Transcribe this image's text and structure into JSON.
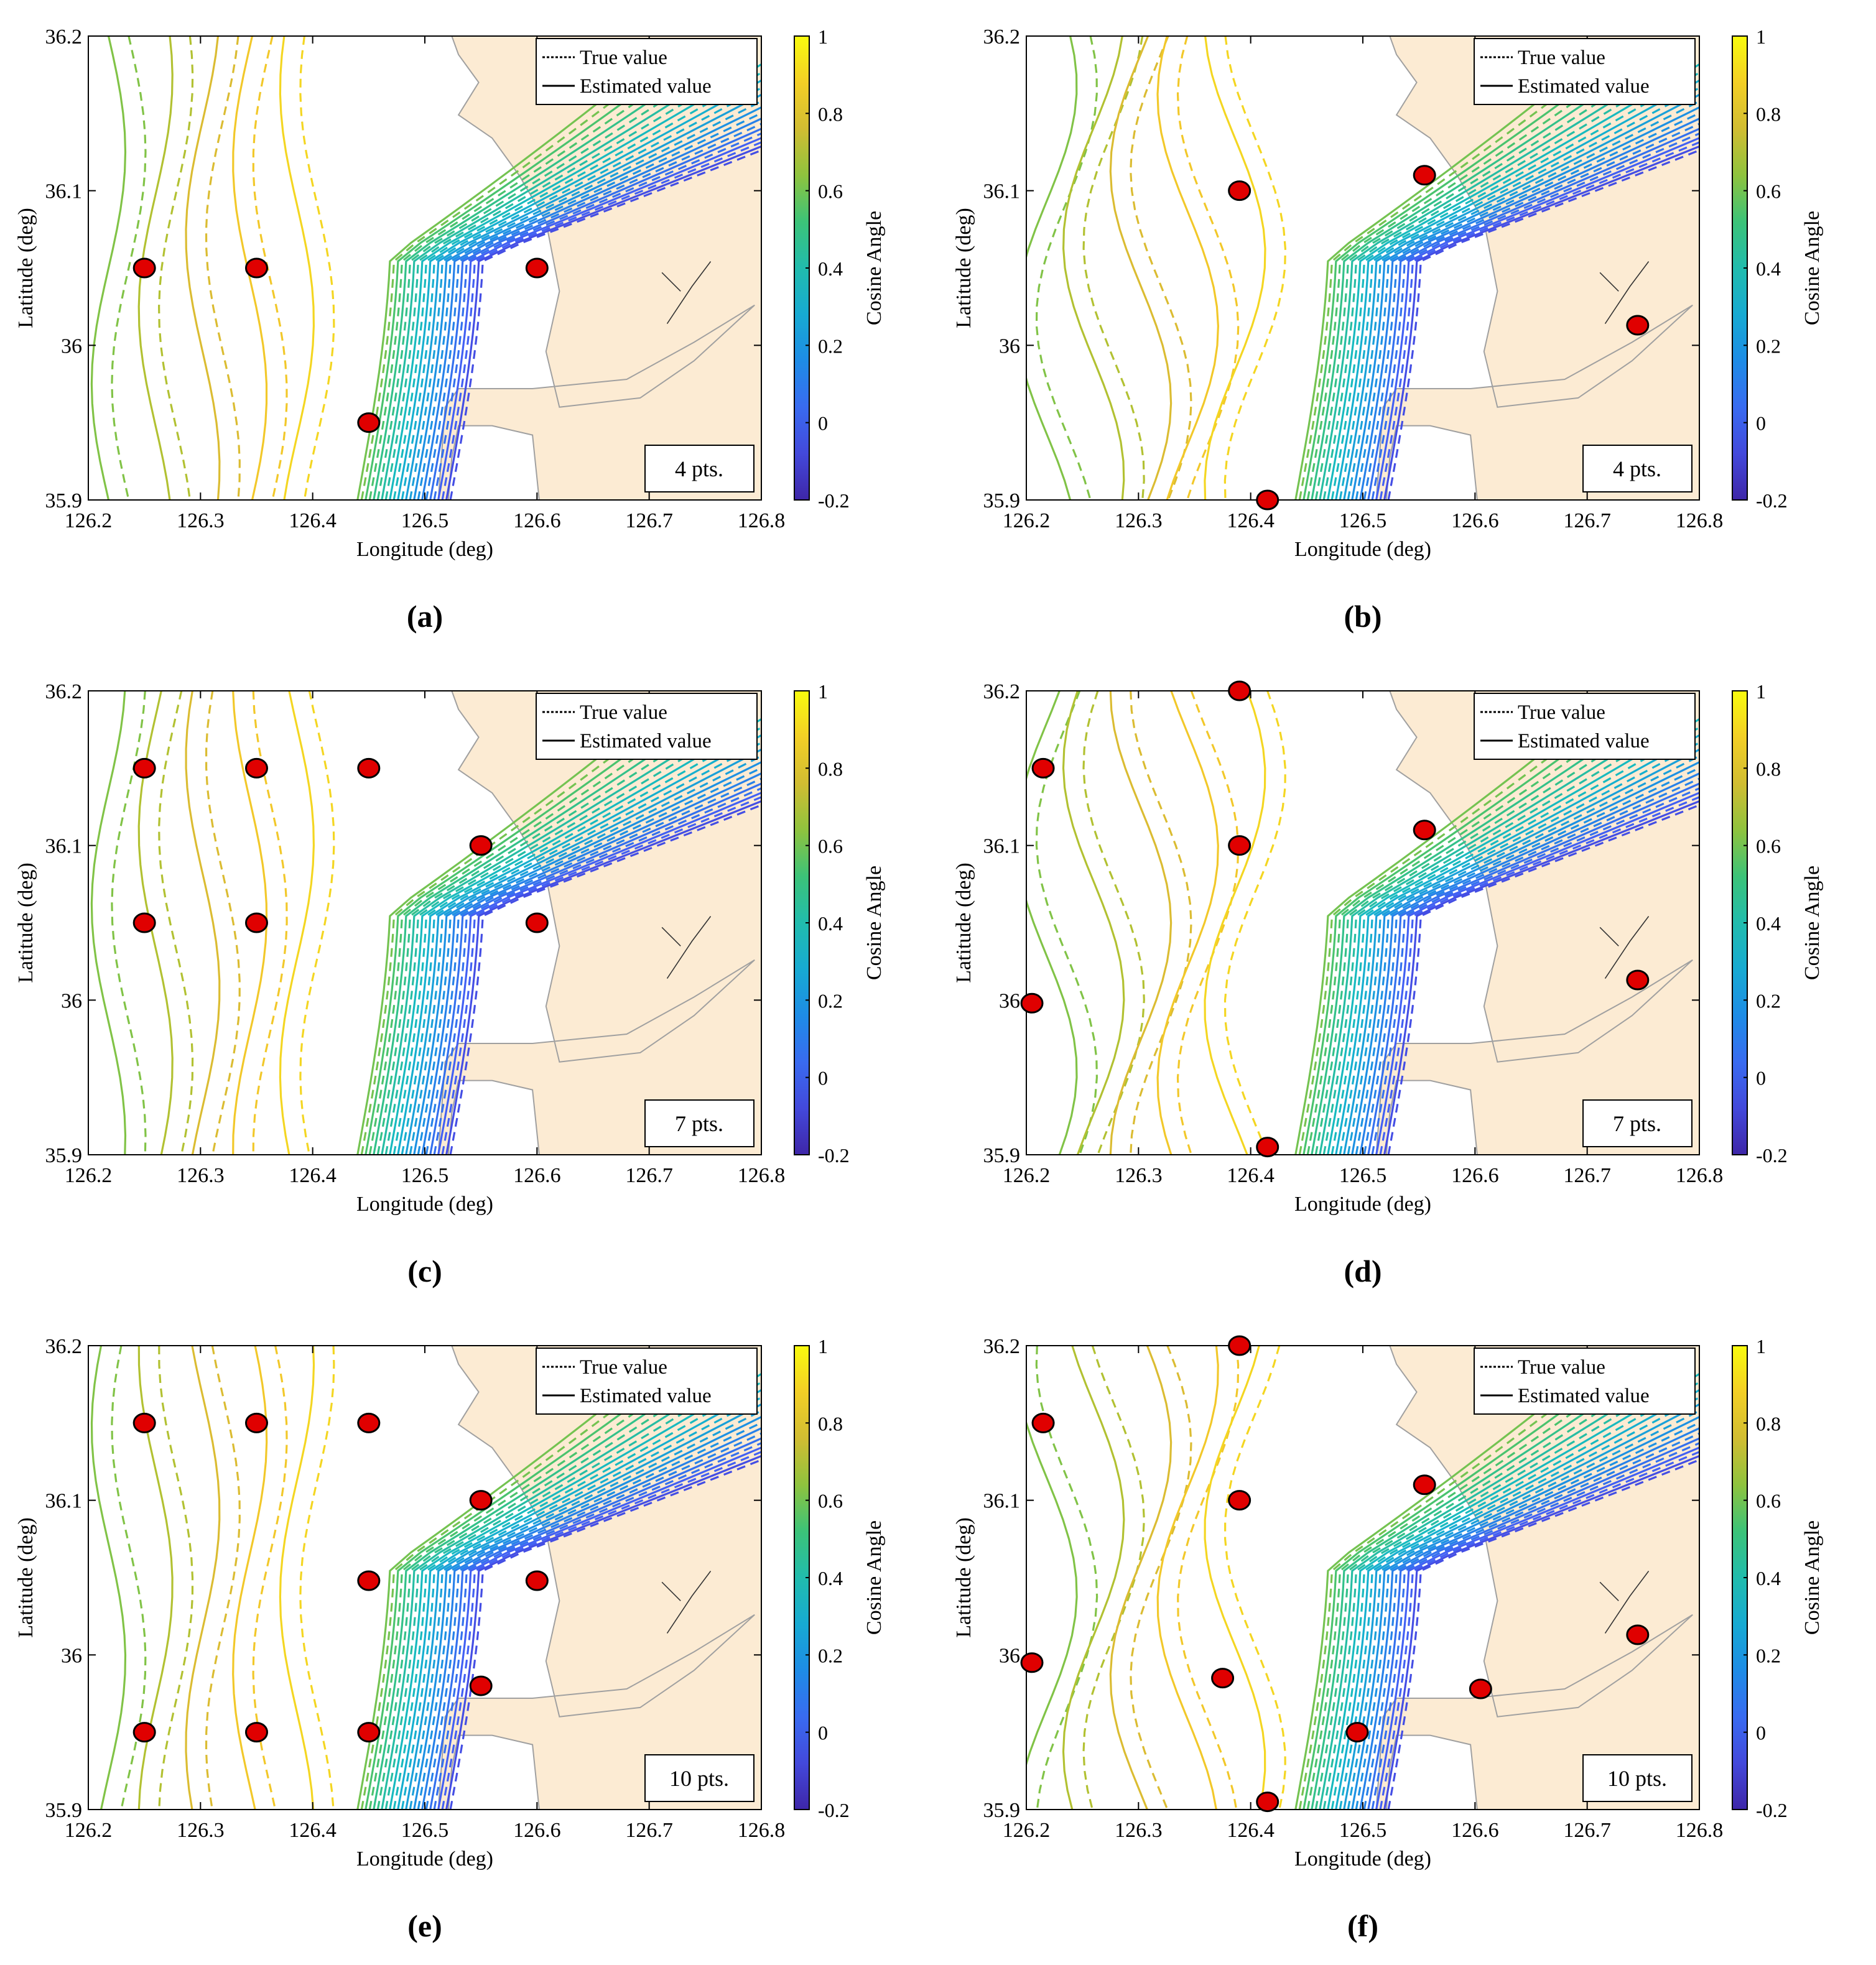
{
  "figure": {
    "panels": [
      {
        "id": "a",
        "caption": "(a)"
      },
      {
        "id": "b",
        "caption": "(b)"
      },
      {
        "id": "c",
        "caption": "(c)"
      },
      {
        "id": "d",
        "caption": "(d)"
      },
      {
        "id": "e",
        "caption": "(e)"
      },
      {
        "id": "f",
        "caption": "(f)"
      }
    ],
    "colors": {
      "land": "#fcebd3",
      "coast": "#a0a0a0",
      "marker_fill": "#e00000",
      "marker_edge": "#000000"
    }
  },
  "chart_data": [
    {
      "panel": "a",
      "type": "contour",
      "xlabel": "Longitude (deg)",
      "ylabel": "Latitude (deg)",
      "xlim": [
        126.2,
        126.8
      ],
      "ylim": [
        35.9,
        36.2
      ],
      "xticks": [
        "126.2",
        "126.3",
        "126.4",
        "126.5",
        "126.6",
        "126.7",
        "126.8"
      ],
      "yticks": [
        "35.9",
        "36",
        "36.1",
        "36.2"
      ],
      "colorbar": {
        "label": "Cosine Angle",
        "min": -0.2,
        "max": 1,
        "ticks": [
          "-0.2",
          "0",
          "0.2",
          "0.4",
          "0.6",
          "0.8",
          "1"
        ]
      },
      "legend": {
        "position": "top-right",
        "entries": [
          "True value",
          "Estimated value"
        ]
      },
      "annotation": "4 pts.",
      "points": [
        [
          126.25,
          36.05
        ],
        [
          126.35,
          36.05
        ],
        [
          126.6,
          36.05
        ],
        [
          126.45,
          35.95
        ]
      ]
    },
    {
      "panel": "b",
      "type": "contour",
      "xlabel": "Longitude (deg)",
      "ylabel": "Latitude (deg)",
      "xlim": [
        126.2,
        126.8
      ],
      "ylim": [
        35.9,
        36.2
      ],
      "xticks": [
        "126.2",
        "126.3",
        "126.4",
        "126.5",
        "126.6",
        "126.7",
        "126.8"
      ],
      "yticks": [
        "35.9",
        "36",
        "36.1",
        "36.2"
      ],
      "colorbar": {
        "label": "Cosine Angle",
        "min": -0.2,
        "max": 1,
        "ticks": [
          "-0.2",
          "0",
          "0.2",
          "0.4",
          "0.6",
          "0.8",
          "1"
        ]
      },
      "legend": {
        "position": "top-right",
        "entries": [
          "True value",
          "Estimated value"
        ]
      },
      "annotation": "4 pts.",
      "points": [
        [
          126.39,
          36.1
        ],
        [
          126.555,
          36.11
        ],
        [
          126.745,
          36.013
        ],
        [
          126.415,
          35.9
        ]
      ]
    },
    {
      "panel": "c",
      "type": "contour",
      "xlabel": "Longitude (deg)",
      "ylabel": "Latitude (deg)",
      "xlim": [
        126.2,
        126.8
      ],
      "ylim": [
        35.9,
        36.2
      ],
      "xticks": [
        "126.2",
        "126.3",
        "126.4",
        "126.5",
        "126.6",
        "126.7",
        "126.8"
      ],
      "yticks": [
        "35.9",
        "36",
        "36.1",
        "36.2"
      ],
      "colorbar": {
        "label": "Cosine Angle",
        "min": -0.2,
        "max": 1,
        "ticks": [
          "-0.2",
          "0",
          "0.2",
          "0.4",
          "0.6",
          "0.8",
          "1"
        ]
      },
      "legend": {
        "position": "top-right",
        "entries": [
          "True value",
          "Estimated value"
        ]
      },
      "annotation": "7 pts.",
      "points": [
        [
          126.25,
          36.15
        ],
        [
          126.35,
          36.15
        ],
        [
          126.45,
          36.15
        ],
        [
          126.55,
          36.1
        ],
        [
          126.25,
          36.05
        ],
        [
          126.35,
          36.05
        ],
        [
          126.6,
          36.05
        ]
      ]
    },
    {
      "panel": "d",
      "type": "contour",
      "xlabel": "Longitude (deg)",
      "ylabel": "Latitude (deg)",
      "xlim": [
        126.2,
        126.8
      ],
      "ylim": [
        35.9,
        36.2
      ],
      "xticks": [
        "126.2",
        "126.3",
        "126.4",
        "126.5",
        "126.6",
        "126.7",
        "126.8"
      ],
      "yticks": [
        "35.9",
        "36",
        "36.1",
        "36.2"
      ],
      "colorbar": {
        "label": "Cosine Angle",
        "min": -0.2,
        "max": 1,
        "ticks": [
          "-0.2",
          "0",
          "0.2",
          "0.4",
          "0.6",
          "0.8",
          "1"
        ]
      },
      "legend": {
        "position": "top-right",
        "entries": [
          "True value",
          "Estimated value"
        ]
      },
      "annotation": "7 pts.",
      "points": [
        [
          126.39,
          36.2
        ],
        [
          126.215,
          36.15
        ],
        [
          126.39,
          36.1
        ],
        [
          126.555,
          36.11
        ],
        [
          126.205,
          35.998
        ],
        [
          126.745,
          36.013
        ],
        [
          126.415,
          35.905
        ]
      ]
    },
    {
      "panel": "e",
      "type": "contour",
      "xlabel": "Longitude (deg)",
      "ylabel": "Latitude (deg)",
      "xlim": [
        126.2,
        126.8
      ],
      "ylim": [
        35.9,
        36.2
      ],
      "xticks": [
        "126.2",
        "126.3",
        "126.4",
        "126.5",
        "126.6",
        "126.7",
        "126.8"
      ],
      "yticks": [
        "35.9",
        "36",
        "36.1",
        "36.2"
      ],
      "colorbar": {
        "label": "Cosine Angle",
        "min": -0.2,
        "max": 1,
        "ticks": [
          "-0.2",
          "0",
          "0.2",
          "0.4",
          "0.6",
          "0.8",
          "1"
        ]
      },
      "legend": {
        "position": "top-right",
        "entries": [
          "True value",
          "Estimated value"
        ]
      },
      "annotation": "10 pts.",
      "points": [
        [
          126.25,
          36.15
        ],
        [
          126.35,
          36.15
        ],
        [
          126.45,
          36.15
        ],
        [
          126.55,
          36.1
        ],
        [
          126.45,
          36.048
        ],
        [
          126.6,
          36.048
        ],
        [
          126.55,
          35.98
        ],
        [
          126.25,
          35.95
        ],
        [
          126.35,
          35.95
        ],
        [
          126.45,
          35.95
        ]
      ]
    },
    {
      "panel": "f",
      "type": "contour",
      "xlabel": "Longitude (deg)",
      "ylabel": "Latitude (deg)",
      "xlim": [
        126.2,
        126.8
      ],
      "ylim": [
        35.9,
        36.2
      ],
      "xticks": [
        "126.2",
        "126.3",
        "126.4",
        "126.5",
        "126.6",
        "126.7",
        "126.8"
      ],
      "yticks": [
        "35.9",
        "36",
        "36.1",
        "36.2"
      ],
      "colorbar": {
        "label": "Cosine Angle",
        "min": -0.2,
        "max": 1,
        "ticks": [
          "-0.2",
          "0",
          "0.2",
          "0.4",
          "0.6",
          "0.8",
          "1"
        ]
      },
      "legend": {
        "position": "top-right",
        "entries": [
          "True value",
          "Estimated value"
        ]
      },
      "annotation": "10 pts.",
      "points": [
        [
          126.39,
          36.2
        ],
        [
          126.215,
          36.15
        ],
        [
          126.39,
          36.1
        ],
        [
          126.555,
          36.11
        ],
        [
          126.205,
          35.995
        ],
        [
          126.375,
          35.985
        ],
        [
          126.605,
          35.978
        ],
        [
          126.745,
          36.013
        ],
        [
          126.495,
          35.95
        ],
        [
          126.415,
          35.905
        ]
      ]
    }
  ]
}
